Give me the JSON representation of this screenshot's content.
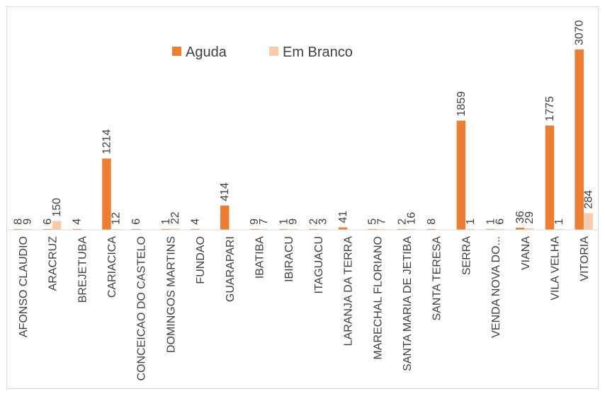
{
  "chart_data": {
    "type": "bar",
    "orientation": "vertical",
    "title": "",
    "xlabel": "",
    "ylabel": "",
    "legend_position": "top",
    "grid": false,
    "y_axis_visible": false,
    "ylim": [
      0,
      3070
    ],
    "categories": [
      "AFONSO CLAUDIO",
      "ARACRUZ",
      "BREJETUBA",
      "CARIACICA",
      "CONCEICAO DO CASTELO",
      "DOMINGOS MARTINS",
      "FUNDAO",
      "GUARAPARI",
      "IBATIBA",
      "IBIRACU",
      "ITAGUACU",
      "LARANJA DA TERRA",
      "MARECHAL FLORIANO",
      "SANTA MARIA DE JETIBA",
      "SANTA TERESA",
      "SERRA",
      "VENDA NOVA DO...",
      "VIANA",
      "VILA VELHA",
      "VITORIA"
    ],
    "series": [
      {
        "name": "Aguda",
        "color": "#ed7d31",
        "values": [
          8,
          6,
          4,
          1214,
          6,
          1,
          4,
          414,
          9,
          1,
          2,
          41,
          5,
          2,
          8,
          1859,
          1,
          36,
          1775,
          3070
        ],
        "labels": [
          "8",
          "6",
          "4",
          "1214",
          "6",
          "1",
          "4",
          "414",
          "9",
          "1",
          "2",
          "41",
          "5",
          "2",
          "8",
          "1859",
          "1",
          "36",
          "1775",
          "3070"
        ]
      },
      {
        "name": "Em Branco",
        "color": "#f8cbad",
        "values": [
          9,
          150,
          null,
          12,
          null,
          22,
          null,
          null,
          7,
          9,
          3,
          null,
          7,
          16,
          null,
          1,
          6,
          29,
          1,
          284
        ],
        "labels": [
          "9",
          "150",
          "",
          "12",
          "",
          "22",
          "",
          "",
          "7",
          "9",
          "3",
          "",
          "7",
          "16",
          "",
          "1",
          "6",
          "29",
          "1",
          "284"
        ]
      }
    ]
  }
}
